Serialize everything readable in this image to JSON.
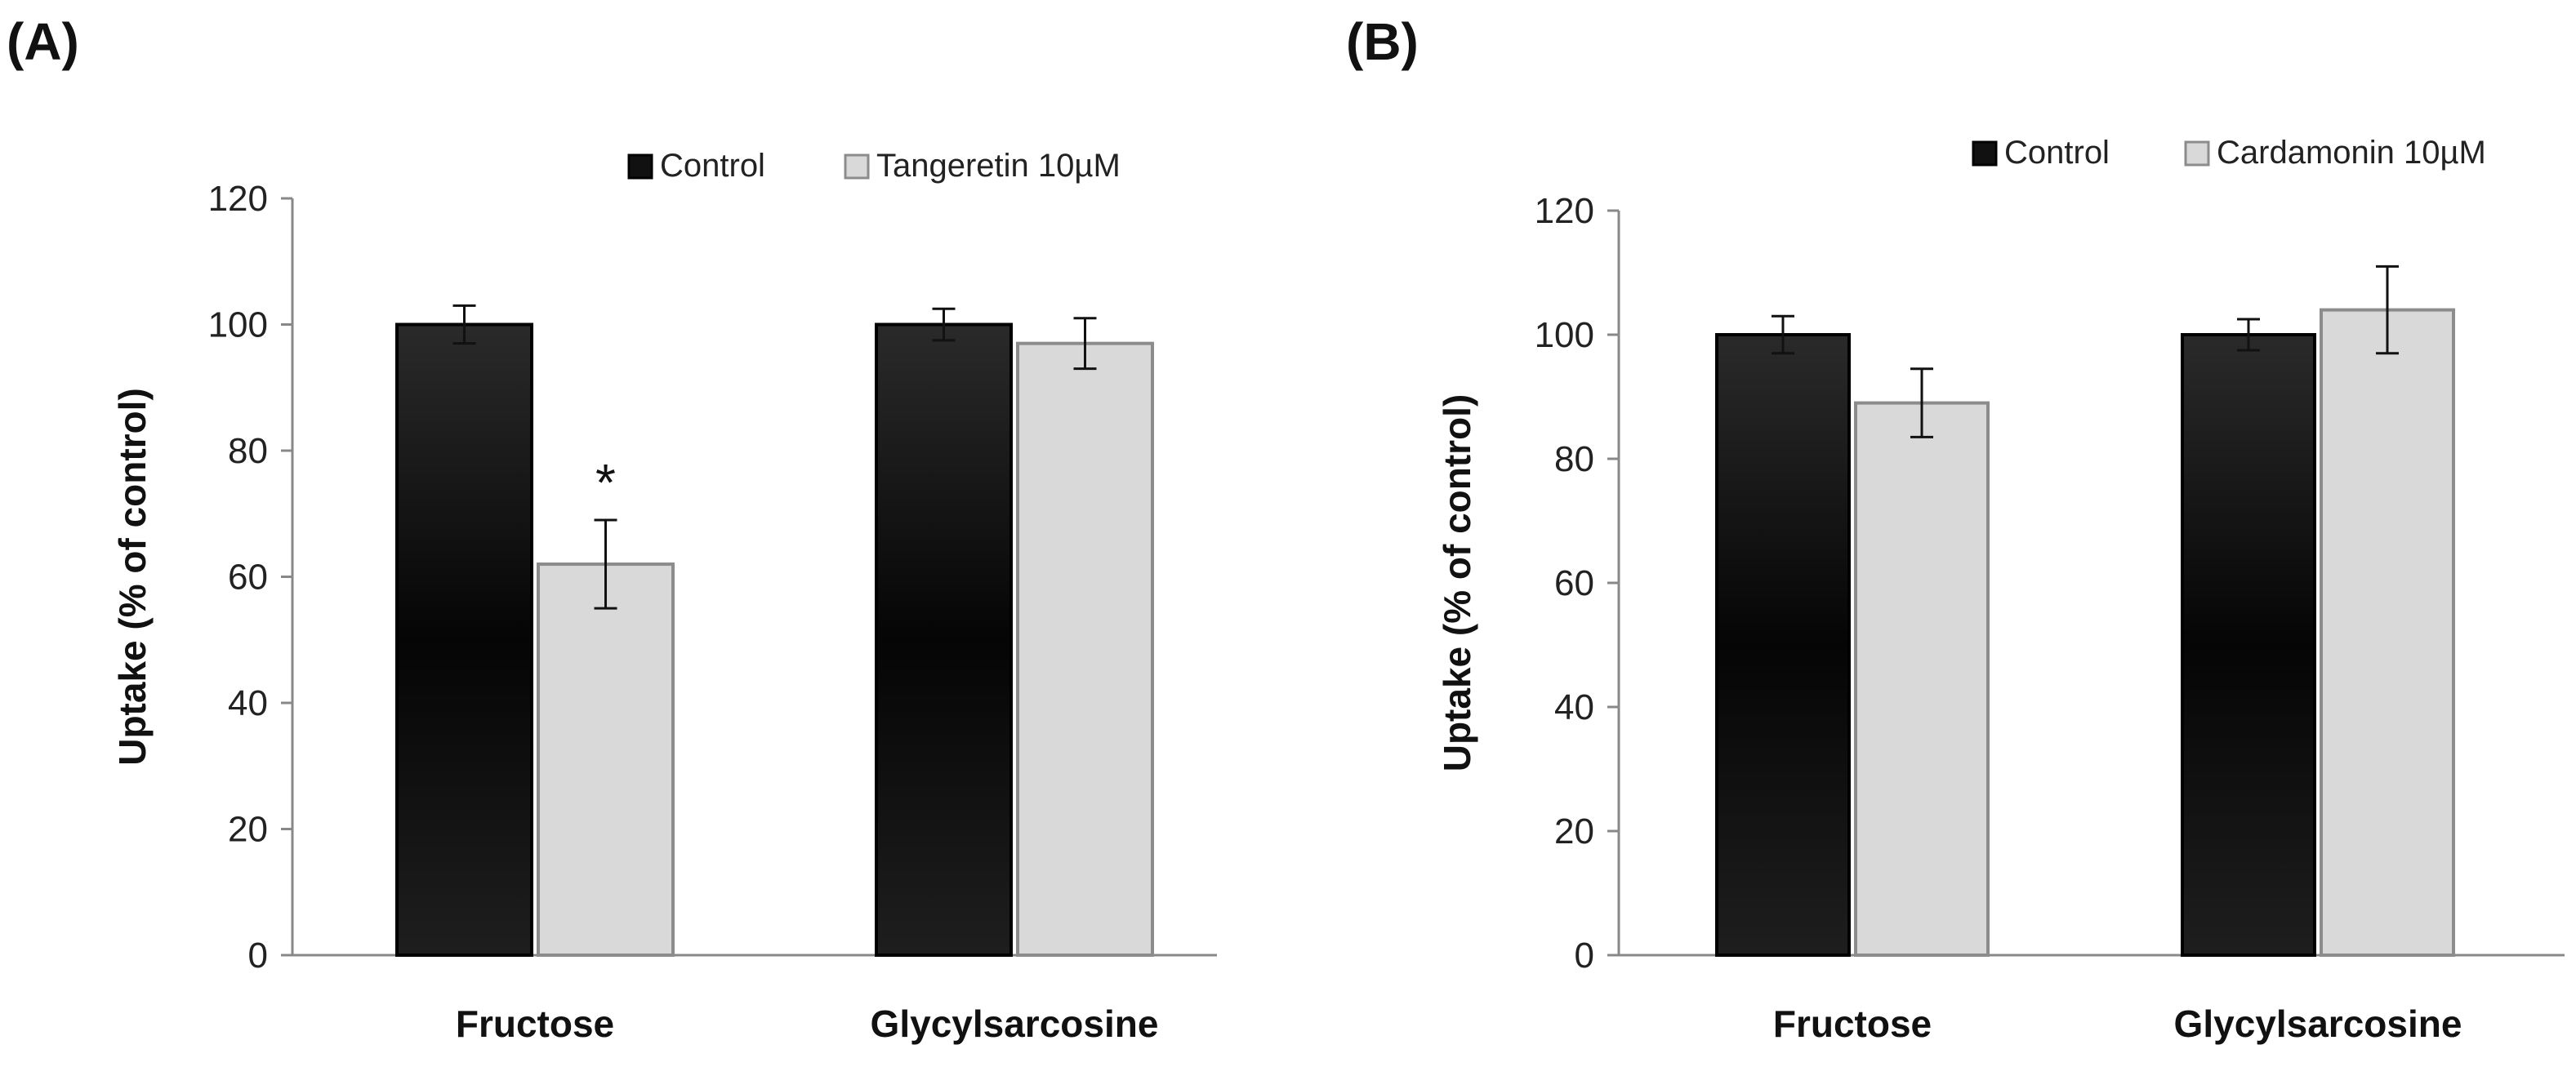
{
  "chart_data": [
    {
      "type": "bar",
      "panel_label": "(A)",
      "categories": [
        "Fructose",
        "Glycylsarcosine"
      ],
      "series": [
        {
          "name": "Control",
          "values": [
            100,
            100
          ],
          "errors": [
            3,
            2.5
          ],
          "color": "#0d0d0d"
        },
        {
          "name": "Tangeretin 10µM",
          "values": [
            62,
            97
          ],
          "errors": [
            7,
            4
          ],
          "color": "#d9d9d9"
        }
      ],
      "annotations": [
        {
          "text": "*",
          "category": "Fructose",
          "series": "Tangeretin 10µM"
        }
      ],
      "ylabel": "Uptake (% of control)",
      "xlabel": "",
      "ylim": [
        0,
        120
      ],
      "yticks": [
        0,
        20,
        40,
        60,
        80,
        100,
        120
      ],
      "legend": "top-right",
      "grid": false
    },
    {
      "type": "bar",
      "panel_label": "(B)",
      "categories": [
        "Fructose",
        "Glycylsarcosine"
      ],
      "series": [
        {
          "name": "Control",
          "values": [
            100,
            100
          ],
          "errors": [
            3,
            2.5
          ],
          "color": "#0d0d0d"
        },
        {
          "name": "Cardamonin 10µM",
          "values": [
            89,
            104
          ],
          "errors": [
            5.5,
            7
          ],
          "color": "#d9d9d9"
        }
      ],
      "annotations": [],
      "ylabel": "Uptake (% of control)",
      "xlabel": "",
      "ylim": [
        0,
        120
      ],
      "yticks": [
        0,
        20,
        40,
        60,
        80,
        100,
        120
      ],
      "legend": "top-right",
      "grid": false
    }
  ]
}
